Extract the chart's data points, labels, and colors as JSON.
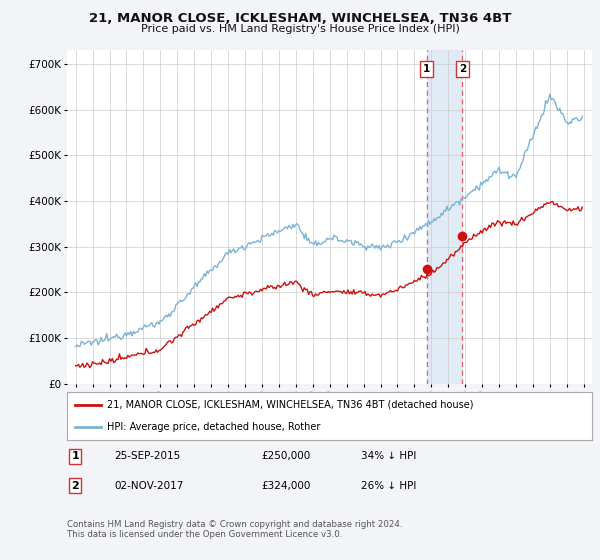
{
  "title": "21, MANOR CLOSE, ICKLESHAM, WINCHELSEA, TN36 4BT",
  "subtitle": "Price paid vs. HM Land Registry's House Price Index (HPI)",
  "xlim_start": 1994.5,
  "xlim_end": 2025.5,
  "ylim": [
    0,
    730000
  ],
  "yticks": [
    0,
    100000,
    200000,
    300000,
    400000,
    500000,
    600000,
    700000
  ],
  "ytick_labels": [
    "£0",
    "£100K",
    "£200K",
    "£300K",
    "£400K",
    "£500K",
    "£600K",
    "£700K"
  ],
  "hpi_color": "#7ab3d4",
  "price_color": "#cc1111",
  "sale1_x": 2015.73,
  "sale1_y": 250000,
  "sale2_x": 2017.84,
  "sale2_y": 324000,
  "legend_entry1": "21, MANOR CLOSE, ICKLESHAM, WINCHELSEA, TN36 4BT (detached house)",
  "legend_entry2": "HPI: Average price, detached house, Rother",
  "table_row1": [
    "1",
    "25-SEP-2015",
    "£250,000",
    "34% ↓ HPI"
  ],
  "table_row2": [
    "2",
    "02-NOV-2017",
    "£324,000",
    "26% ↓ HPI"
  ],
  "footnote": "Contains HM Land Registry data © Crown copyright and database right 2024.\nThis data is licensed under the Open Government Licence v3.0.",
  "background_color": "#f2f4f8",
  "plot_bg_color": "#ffffff",
  "shade_x1": 2015.73,
  "shade_x2": 2017.84,
  "grid_color": "#cccccc",
  "dashed_line_color": "#dd6666"
}
